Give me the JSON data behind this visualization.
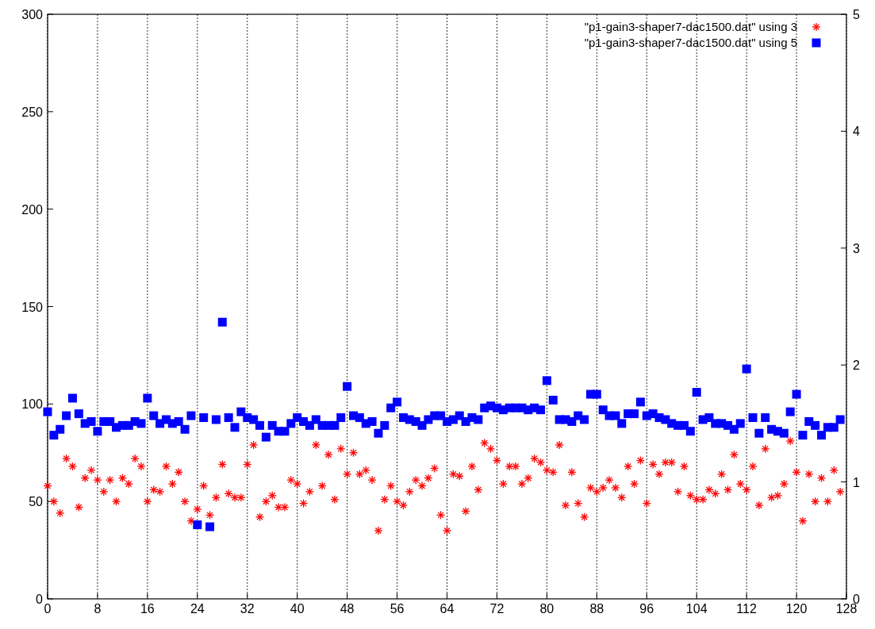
{
  "chart_data": {
    "type": "scatter",
    "x": [
      0,
      1,
      2,
      3,
      4,
      5,
      6,
      7,
      8,
      9,
      10,
      11,
      12,
      13,
      14,
      15,
      16,
      17,
      18,
      19,
      20,
      21,
      22,
      23,
      24,
      25,
      26,
      27,
      28,
      29,
      30,
      31,
      32,
      33,
      34,
      35,
      36,
      37,
      38,
      39,
      40,
      41,
      42,
      43,
      44,
      45,
      46,
      47,
      48,
      49,
      50,
      51,
      52,
      53,
      54,
      55,
      56,
      57,
      58,
      59,
      60,
      61,
      62,
      63,
      64,
      65,
      66,
      67,
      68,
      69,
      70,
      71,
      72,
      73,
      74,
      75,
      76,
      77,
      78,
      79,
      80,
      81,
      82,
      83,
      84,
      85,
      86,
      87,
      88,
      89,
      90,
      91,
      92,
      93,
      94,
      95,
      96,
      97,
      98,
      99,
      100,
      101,
      102,
      103,
      104,
      105,
      106,
      107,
      108,
      109,
      110,
      111,
      112,
      113,
      114,
      115,
      116,
      117,
      118,
      119,
      120,
      121,
      122,
      123,
      124,
      125,
      126,
      127
    ],
    "series": [
      {
        "name": "\"p1-gain3-shaper7-dac1500.dat\" using 3",
        "color": "#ff0000",
        "marker": "cross",
        "values": [
          58,
          50,
          44,
          72,
          68,
          47,
          62,
          66,
          61,
          55,
          61,
          50,
          62,
          59,
          72,
          68,
          50,
          56,
          55,
          68,
          59,
          65,
          50,
          40,
          46,
          58,
          43,
          52,
          69,
          54,
          52,
          52,
          69,
          79,
          42,
          50,
          53,
          47,
          47,
          61,
          59,
          49,
          55,
          79,
          58,
          74,
          51,
          77,
          64,
          75,
          64,
          66,
          61,
          35,
          51,
          58,
          50,
          48,
          55,
          61,
          58,
          62,
          67,
          43,
          35,
          64,
          63,
          45,
          68,
          56,
          80,
          77,
          71,
          59,
          68,
          68,
          59,
          62,
          72,
          70,
          66,
          65,
          79,
          48,
          65,
          49,
          42,
          57,
          55,
          57,
          61,
          57,
          52,
          68,
          59,
          71,
          49,
          69,
          64,
          70,
          70,
          55,
          68,
          53,
          51,
          51,
          56,
          54,
          64,
          56,
          74,
          59,
          56,
          68,
          48,
          77,
          52,
          53,
          59,
          81,
          65,
          40,
          64,
          50,
          62,
          50,
          66,
          55
        ]
      },
      {
        "name": "\"p1-gain3-shaper7-dac1500.dat\" using 5",
        "color": "#0000ff",
        "marker": "square",
        "values": [
          96,
          84,
          87,
          94,
          103,
          95,
          90,
          91,
          86,
          91,
          91,
          88,
          89,
          89,
          91,
          90,
          103,
          94,
          90,
          92,
          90,
          91,
          87,
          94,
          38,
          93,
          37,
          92,
          142,
          93,
          88,
          96,
          93,
          92,
          89,
          83,
          89,
          86,
          86,
          90,
          93,
          91,
          89,
          92,
          89,
          89,
          89,
          93,
          109,
          94,
          93,
          90,
          91,
          85,
          89,
          98,
          101,
          93,
          92,
          91,
          89,
          92,
          94,
          94,
          91,
          92,
          94,
          91,
          93,
          92,
          98,
          99,
          98,
          97,
          98,
          98,
          98,
          97,
          98,
          97,
          112,
          102,
          92,
          92,
          91,
          94,
          92,
          105,
          105,
          97,
          94,
          94,
          90,
          95,
          95,
          101,
          94,
          95,
          93,
          92,
          90,
          89,
          89,
          86,
          106,
          92,
          93,
          90,
          90,
          89,
          87,
          90,
          118,
          93,
          85,
          93,
          87,
          86,
          85,
          96,
          105,
          84,
          91,
          89,
          84,
          88,
          88,
          92
        ]
      }
    ],
    "xlim": [
      0,
      128
    ],
    "xticks": [
      0,
      8,
      16,
      24,
      32,
      40,
      48,
      56,
      64,
      72,
      80,
      88,
      96,
      104,
      112,
      120,
      128
    ],
    "ylim": [
      0,
      300
    ],
    "yticks": [
      0,
      50,
      100,
      150,
      200,
      250,
      300
    ],
    "y2lim": [
      0,
      5
    ],
    "y2ticks": [
      0,
      1,
      2,
      3,
      4,
      5
    ],
    "grid": "x",
    "legend": "top right"
  }
}
